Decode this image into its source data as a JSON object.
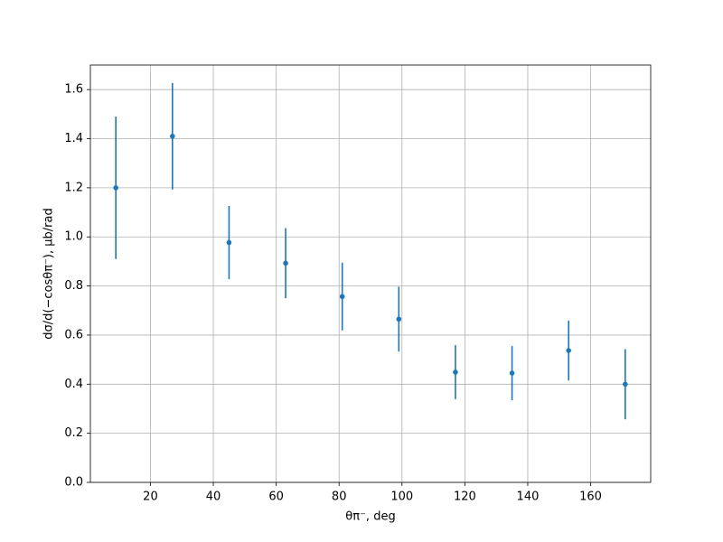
{
  "chart_data": {
    "type": "errorbar",
    "x_label": "θπ⁻, deg",
    "y_label": "dσ/d(−cosθπ⁻), μb/rad",
    "x": [
      9,
      27,
      45,
      63,
      81,
      99,
      117,
      135,
      153,
      171
    ],
    "series": [
      {
        "color": "#1f77b4",
        "values": [
          1.2,
          1.41,
          0.977,
          0.893,
          0.757,
          0.665,
          0.449,
          0.445,
          0.537,
          0.4
        ],
        "errors": [
          0.29,
          0.217,
          0.149,
          0.143,
          0.138,
          0.132,
          0.11,
          0.11,
          0.122,
          0.143
        ]
      }
    ],
    "xlim": [
      0.9,
      179.1
    ],
    "ylim": [
      0,
      1.7
    ],
    "xticks": [
      20,
      40,
      60,
      80,
      100,
      120,
      140,
      160
    ],
    "yticks": [
      {
        "value": 0,
        "label": "0.0"
      },
      {
        "value": 0.2,
        "label": "0.2"
      },
      {
        "value": 0.4,
        "label": "0.4"
      },
      {
        "value": 0.6,
        "label": "0.6"
      },
      {
        "value": 0.8,
        "label": "0.8"
      },
      {
        "value": 1,
        "label": "1.0"
      },
      {
        "value": 1.2,
        "label": "1.2"
      },
      {
        "value": 1.4,
        "label": "1.4"
      },
      {
        "value": 1.6,
        "label": "1.6"
      }
    ],
    "grid": true
  }
}
